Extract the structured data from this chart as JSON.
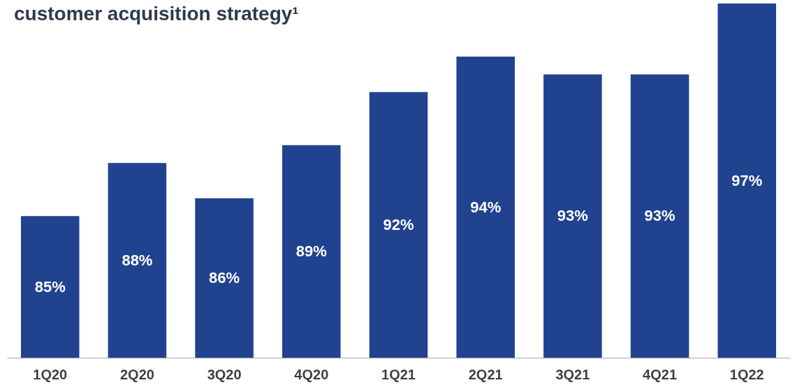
{
  "chart_data": {
    "type": "bar",
    "title": "customer acquisition strategy¹",
    "categories": [
      "1Q20",
      "2Q20",
      "3Q20",
      "4Q20",
      "1Q21",
      "2Q21",
      "3Q21",
      "4Q21",
      "1Q22"
    ],
    "values": [
      85,
      88,
      86,
      89,
      92,
      94,
      93,
      93,
      97
    ],
    "value_labels": [
      "85%",
      "88%",
      "86%",
      "89%",
      "92%",
      "94%",
      "93%",
      "93%",
      "97%"
    ],
    "color": "#21428f",
    "ylim": [
      77,
      97
    ],
    "tick_labels": "x",
    "grid": false
  }
}
